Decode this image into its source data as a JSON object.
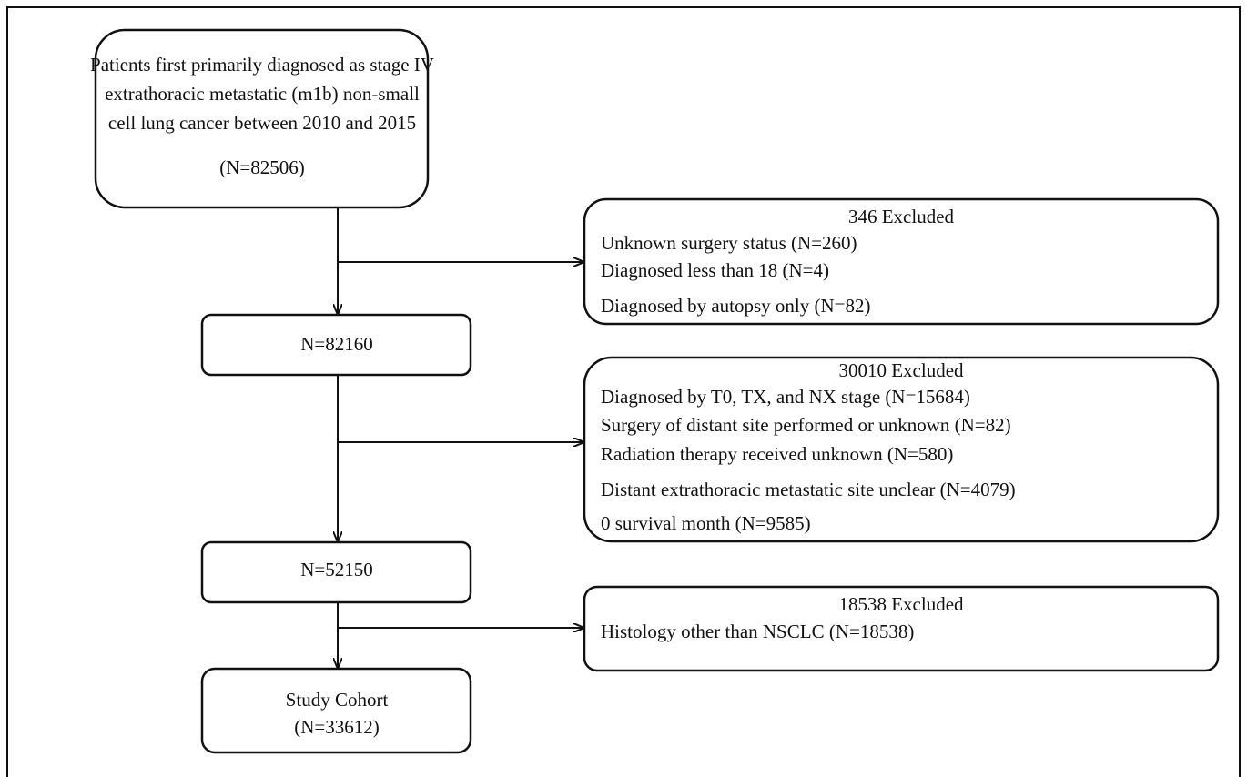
{
  "nodes": [
    {
      "lines": [
        "Patients first primarily diagnosed as stage IV",
        "extrathoracic metastatic (m1b) non-small",
        "cell lung cancer between 2010 and 2015",
        "(N=82506)"
      ]
    },
    {
      "lines": [
        "N=82160"
      ]
    },
    {
      "lines": [
        "N=52150"
      ]
    },
    {
      "lines": [
        "Study Cohort",
        "(N=33612)"
      ]
    }
  ],
  "exclusions": [
    {
      "title": "346 Excluded",
      "lines": [
        "Unknown surgery status (N=260)",
        "Diagnosed less than 18 (N=4)",
        "Diagnosed by autopsy only (N=82)"
      ]
    },
    {
      "title": "30010 Excluded",
      "lines": [
        "Diagnosed by T0, TX, and NX stage (N=15684)",
        "Surgery of distant site performed or unknown (N=82)",
        "Radiation therapy received unknown (N=580)",
        "Distant extrathoracic metastatic site unclear (N=4079)",
        "0 survival month (N=9585)"
      ]
    },
    {
      "title": "18538 Excluded",
      "lines": [
        "Histology other than NSCLC (N=18538)"
      ]
    }
  ]
}
